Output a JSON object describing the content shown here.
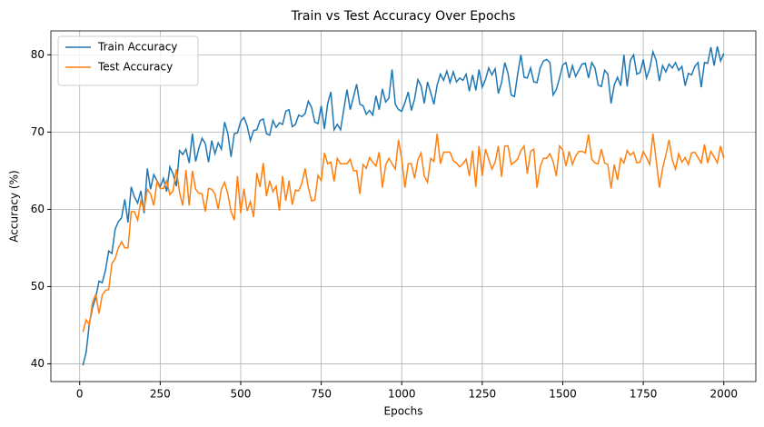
{
  "chart_data": {
    "type": "line",
    "title": "Train vs Test Accuracy Over Epochs",
    "x_label": "Epochs",
    "y_label": "Accuracy (%)",
    "x": [
      10,
      20,
      30,
      40,
      50,
      60,
      70,
      80,
      90,
      100,
      110,
      120,
      130,
      140,
      150,
      160,
      170,
      180,
      190,
      200,
      210,
      220,
      230,
      240,
      250,
      260,
      270,
      280,
      290,
      300,
      310,
      320,
      330,
      340,
      350,
      360,
      370,
      380,
      390,
      400,
      410,
      420,
      430,
      440,
      450,
      460,
      470,
      480,
      490,
      500,
      510,
      520,
      530,
      540,
      550,
      560,
      570,
      580,
      590,
      600,
      610,
      620,
      630,
      640,
      650,
      660,
      670,
      680,
      690,
      700,
      710,
      720,
      730,
      740,
      750,
      760,
      770,
      780,
      790,
      800,
      810,
      820,
      830,
      840,
      850,
      860,
      870,
      880,
      890,
      900,
      910,
      920,
      930,
      940,
      950,
      960,
      970,
      980,
      990,
      1000,
      1010,
      1020,
      1030,
      1040,
      1050,
      1060,
      1070,
      1080,
      1090,
      1100,
      1110,
      1120,
      1130,
      1140,
      1150,
      1160,
      1170,
      1180,
      1190,
      1200,
      1210,
      1220,
      1230,
      1240,
      1250,
      1260,
      1270,
      1280,
      1290,
      1300,
      1310,
      1320,
      1330,
      1340,
      1350,
      1360,
      1370,
      1380,
      1390,
      1400,
      1410,
      1420,
      1430,
      1440,
      1450,
      1460,
      1470,
      1480,
      1490,
      1500,
      1510,
      1520,
      1530,
      1540,
      1550,
      1560,
      1570,
      1580,
      1590,
      1600,
      1610,
      1620,
      1630,
      1640,
      1650,
      1660,
      1670,
      1680,
      1690,
      1700,
      1710,
      1720,
      1730,
      1740,
      1750,
      1760,
      1770,
      1780,
      1790,
      1800,
      1810,
      1820,
      1830,
      1840,
      1850,
      1860,
      1870,
      1880,
      1890,
      1900,
      1910,
      1920,
      1930,
      1940,
      1950,
      1960,
      1970,
      1980,
      1990,
      2000
    ],
    "series": [
      {
        "name": "Train Accuracy",
        "color": "#1f77b4",
        "values": [
          39.8,
          41.5,
          45.2,
          47.3,
          48.6,
          50.7,
          50.5,
          52.1,
          54.6,
          54.3,
          57.4,
          58.4,
          58.9,
          61.3,
          58.3,
          62.9,
          61.6,
          60.8,
          62.4,
          59.5,
          65.3,
          62.6,
          64.5,
          63.7,
          62.9,
          64.0,
          62.3,
          65.5,
          64.6,
          63.0,
          67.6,
          67.1,
          67.8,
          66.0,
          69.8,
          66.2,
          67.9,
          69.2,
          68.5,
          66.1,
          68.9,
          67.2,
          68.6,
          67.8,
          71.3,
          69.8,
          66.8,
          69.8,
          69.9,
          71.4,
          71.9,
          70.8,
          68.9,
          70.2,
          70.3,
          71.5,
          71.7,
          69.8,
          69.6,
          71.5,
          70.6,
          71.2,
          71.0,
          72.7,
          72.9,
          70.7,
          71.0,
          72.2,
          72.0,
          72.4,
          74.0,
          73.2,
          71.3,
          71.1,
          73.4,
          70.4,
          73.7,
          75.2,
          70.3,
          71.0,
          70.3,
          72.9,
          75.5,
          72.9,
          74.5,
          76.2,
          73.6,
          73.4,
          72.3,
          72.8,
          72.2,
          74.7,
          72.9,
          75.6,
          73.9,
          74.4,
          78.1,
          73.6,
          72.9,
          72.7,
          73.8,
          75.2,
          72.8,
          74.3,
          76.8,
          76.0,
          73.7,
          76.5,
          75.1,
          73.6,
          76.1,
          77.5,
          76.7,
          77.9,
          76.4,
          77.8,
          76.5,
          77.0,
          76.7,
          77.5,
          75.3,
          77.4,
          75.4,
          78.1,
          75.8,
          76.8,
          78.3,
          77.4,
          78.2,
          75.0,
          76.4,
          79.0,
          77.6,
          74.8,
          74.6,
          77.5,
          80.0,
          77.1,
          77.0,
          78.3,
          76.5,
          76.4,
          78.3,
          79.2,
          79.4,
          79.0,
          74.8,
          75.5,
          77.0,
          78.7,
          79.0,
          77.0,
          78.6,
          77.2,
          78.0,
          78.8,
          78.9,
          77.0,
          79.0,
          78.3,
          76.1,
          75.9,
          78.0,
          77.5,
          73.7,
          76.1,
          77.1,
          76.0,
          80.0,
          75.9,
          79.3,
          80.0,
          77.5,
          77.7,
          79.4,
          77.0,
          78.2,
          80.4,
          79.3,
          76.6,
          78.6,
          77.8,
          78.8,
          78.3,
          79.0,
          78.0,
          78.5,
          76.0,
          77.6,
          77.4,
          78.5,
          79.0,
          75.8,
          79.0,
          78.9,
          81.0,
          78.6,
          81.1,
          79.2,
          80.2
        ]
      },
      {
        "name": "Test Accuracy",
        "color": "#ff7f0e",
        "values": [
          44.1,
          45.7,
          45.1,
          48.0,
          49.0,
          46.5,
          48.9,
          49.5,
          49.6,
          53.0,
          53.6,
          55.0,
          55.8,
          55.0,
          55.0,
          59.7,
          59.7,
          58.6,
          61.1,
          60.0,
          62.6,
          62.0,
          60.5,
          63.6,
          62.7,
          62.7,
          63.7,
          61.9,
          62.4,
          65.2,
          62.2,
          60.5,
          65.1,
          60.5,
          65.0,
          62.6,
          62.1,
          62.0,
          59.7,
          62.7,
          62.6,
          62.0,
          60.0,
          62.6,
          63.5,
          62.0,
          59.7,
          58.6,
          64.3,
          59.5,
          62.7,
          59.8,
          61.0,
          59.0,
          64.7,
          62.9,
          66.0,
          61.7,
          63.7,
          62.3,
          63.0,
          59.8,
          64.3,
          61.1,
          63.7,
          60.6,
          62.5,
          62.4,
          63.4,
          65.3,
          62.8,
          61.1,
          61.2,
          64.4,
          63.7,
          67.3,
          65.9,
          66.1,
          63.6,
          66.6,
          65.9,
          65.9,
          65.9,
          66.5,
          65.0,
          65.0,
          62.0,
          65.8,
          65.3,
          66.7,
          66.1,
          65.6,
          67.4,
          62.8,
          65.7,
          66.6,
          65.9,
          65.2,
          69.0,
          66.5,
          62.8,
          65.9,
          65.9,
          64.0,
          66.4,
          67.3,
          64.3,
          63.5,
          66.6,
          66.2,
          69.8,
          65.9,
          67.4,
          67.4,
          67.4,
          66.3,
          66.0,
          65.5,
          65.9,
          66.5,
          64.3,
          67.6,
          62.9,
          68.2,
          64.3,
          67.8,
          66.5,
          65.2,
          66.1,
          68.2,
          64.2,
          68.2,
          68.2,
          65.8,
          66.1,
          66.5,
          67.6,
          68.2,
          64.6,
          67.5,
          67.8,
          62.8,
          65.5,
          66.6,
          66.6,
          67.2,
          66.2,
          64.3,
          68.2,
          67.7,
          65.6,
          67.5,
          65.8,
          66.9,
          67.5,
          67.5,
          67.3,
          69.7,
          66.5,
          66.0,
          65.9,
          67.8,
          66.0,
          65.8,
          62.7,
          65.8,
          63.8,
          66.6,
          66.0,
          67.6,
          67.0,
          67.4,
          66.0,
          66.1,
          67.5,
          66.7,
          65.8,
          69.8,
          66.4,
          62.8,
          65.3,
          67.0,
          69.0,
          66.4,
          65.2,
          67.2,
          66.1,
          66.7,
          65.8,
          67.3,
          67.4,
          66.7,
          66.0,
          68.4,
          66.0,
          67.5,
          66.8,
          66.0,
          68.2,
          66.6
        ]
      }
    ],
    "xlim": [
      -89.5,
      2099.5
    ],
    "ylim": [
      37.7,
      83.1
    ],
    "xticks": [
      0,
      250,
      500,
      750,
      1000,
      1250,
      1500,
      1750,
      2000
    ],
    "yticks": [
      40,
      50,
      60,
      70,
      80
    ],
    "grid": true,
    "legend": "upper left"
  }
}
